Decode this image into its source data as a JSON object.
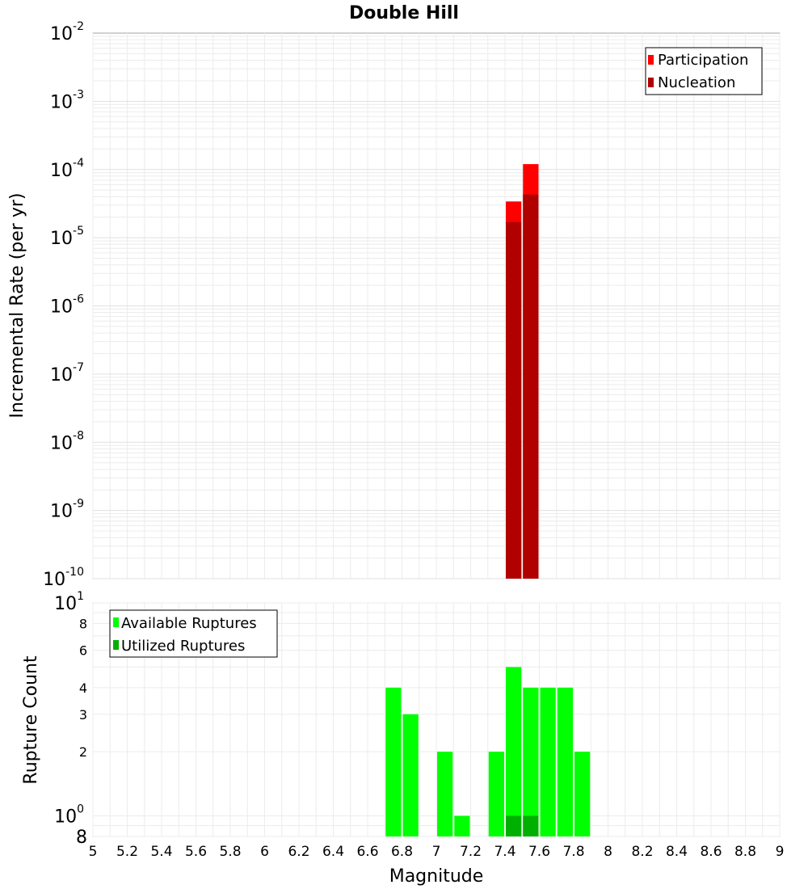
{
  "chart_data": [
    {
      "type": "bar",
      "title": "Double Hill",
      "xlabel": "",
      "ylabel": "Incremental Rate (per yr)",
      "xlim": [
        5,
        9
      ],
      "ylim": [
        1e-10,
        0.01
      ],
      "yscale": "log",
      "grid": true,
      "bin_width": 0.1,
      "legend": {
        "position": "top-right",
        "entries": [
          "Participation",
          "Nucleation"
        ]
      },
      "y_tick_labels": [
        {
          "base": "10",
          "exp": "-2"
        },
        {
          "base": "10",
          "exp": "-3"
        },
        {
          "base": "10",
          "exp": "-4"
        },
        {
          "base": "10",
          "exp": "-5"
        },
        {
          "base": "10",
          "exp": "-6"
        },
        {
          "base": "10",
          "exp": "-7"
        },
        {
          "base": "10",
          "exp": "-8"
        },
        {
          "base": "10",
          "exp": "-9"
        },
        {
          "base": "10",
          "exp": "-10"
        }
      ],
      "series": [
        {
          "name": "Participation",
          "color": "#ff0000",
          "x": [
            7.45,
            7.55
          ],
          "values": [
            3.4e-05,
            0.00012
          ]
        },
        {
          "name": "Nucleation",
          "color": "#b00000",
          "x": [
            7.45,
            7.55
          ],
          "values": [
            1.7e-05,
            4.3e-05
          ]
        }
      ]
    },
    {
      "type": "bar",
      "title": "",
      "xlabel": "Magnitude",
      "ylabel": "Rupture Count",
      "xlim": [
        5,
        9
      ],
      "ylim": [
        0.8,
        10
      ],
      "yscale": "log",
      "grid": true,
      "bin_width": 0.1,
      "legend": {
        "position": "top-left",
        "entries": [
          "Available Ruptures",
          "Utilized Ruptures"
        ]
      },
      "x_tick_labels": [
        "5",
        "5.2",
        "5.4",
        "5.6",
        "5.8",
        "6",
        "6.2",
        "6.4",
        "6.6",
        "6.8",
        "7",
        "7.2",
        "7.4",
        "7.6",
        "7.8",
        "8",
        "8.2",
        "8.4",
        "8.6",
        "8.8",
        "9"
      ],
      "y_tick_labels_plain": [
        "8",
        "6",
        "4",
        "3",
        "2"
      ],
      "y_tick_labels_pow": [
        {
          "base": "10",
          "exp": "1"
        },
        {
          "base": "10",
          "exp": "0"
        }
      ],
      "y_bottom_label": "8",
      "series": [
        {
          "name": "Available Ruptures",
          "color": "#00ff00",
          "x": [
            6.75,
            6.85,
            7.05,
            7.15,
            7.35,
            7.45,
            7.55,
            7.65,
            7.75,
            7.85
          ],
          "values": [
            4,
            3,
            2,
            1,
            2,
            5,
            4,
            4,
            4,
            2
          ]
        },
        {
          "name": "Utilized Ruptures",
          "color": "#00b000",
          "x": [
            7.45,
            7.55
          ],
          "values": [
            1,
            1
          ]
        }
      ]
    }
  ]
}
